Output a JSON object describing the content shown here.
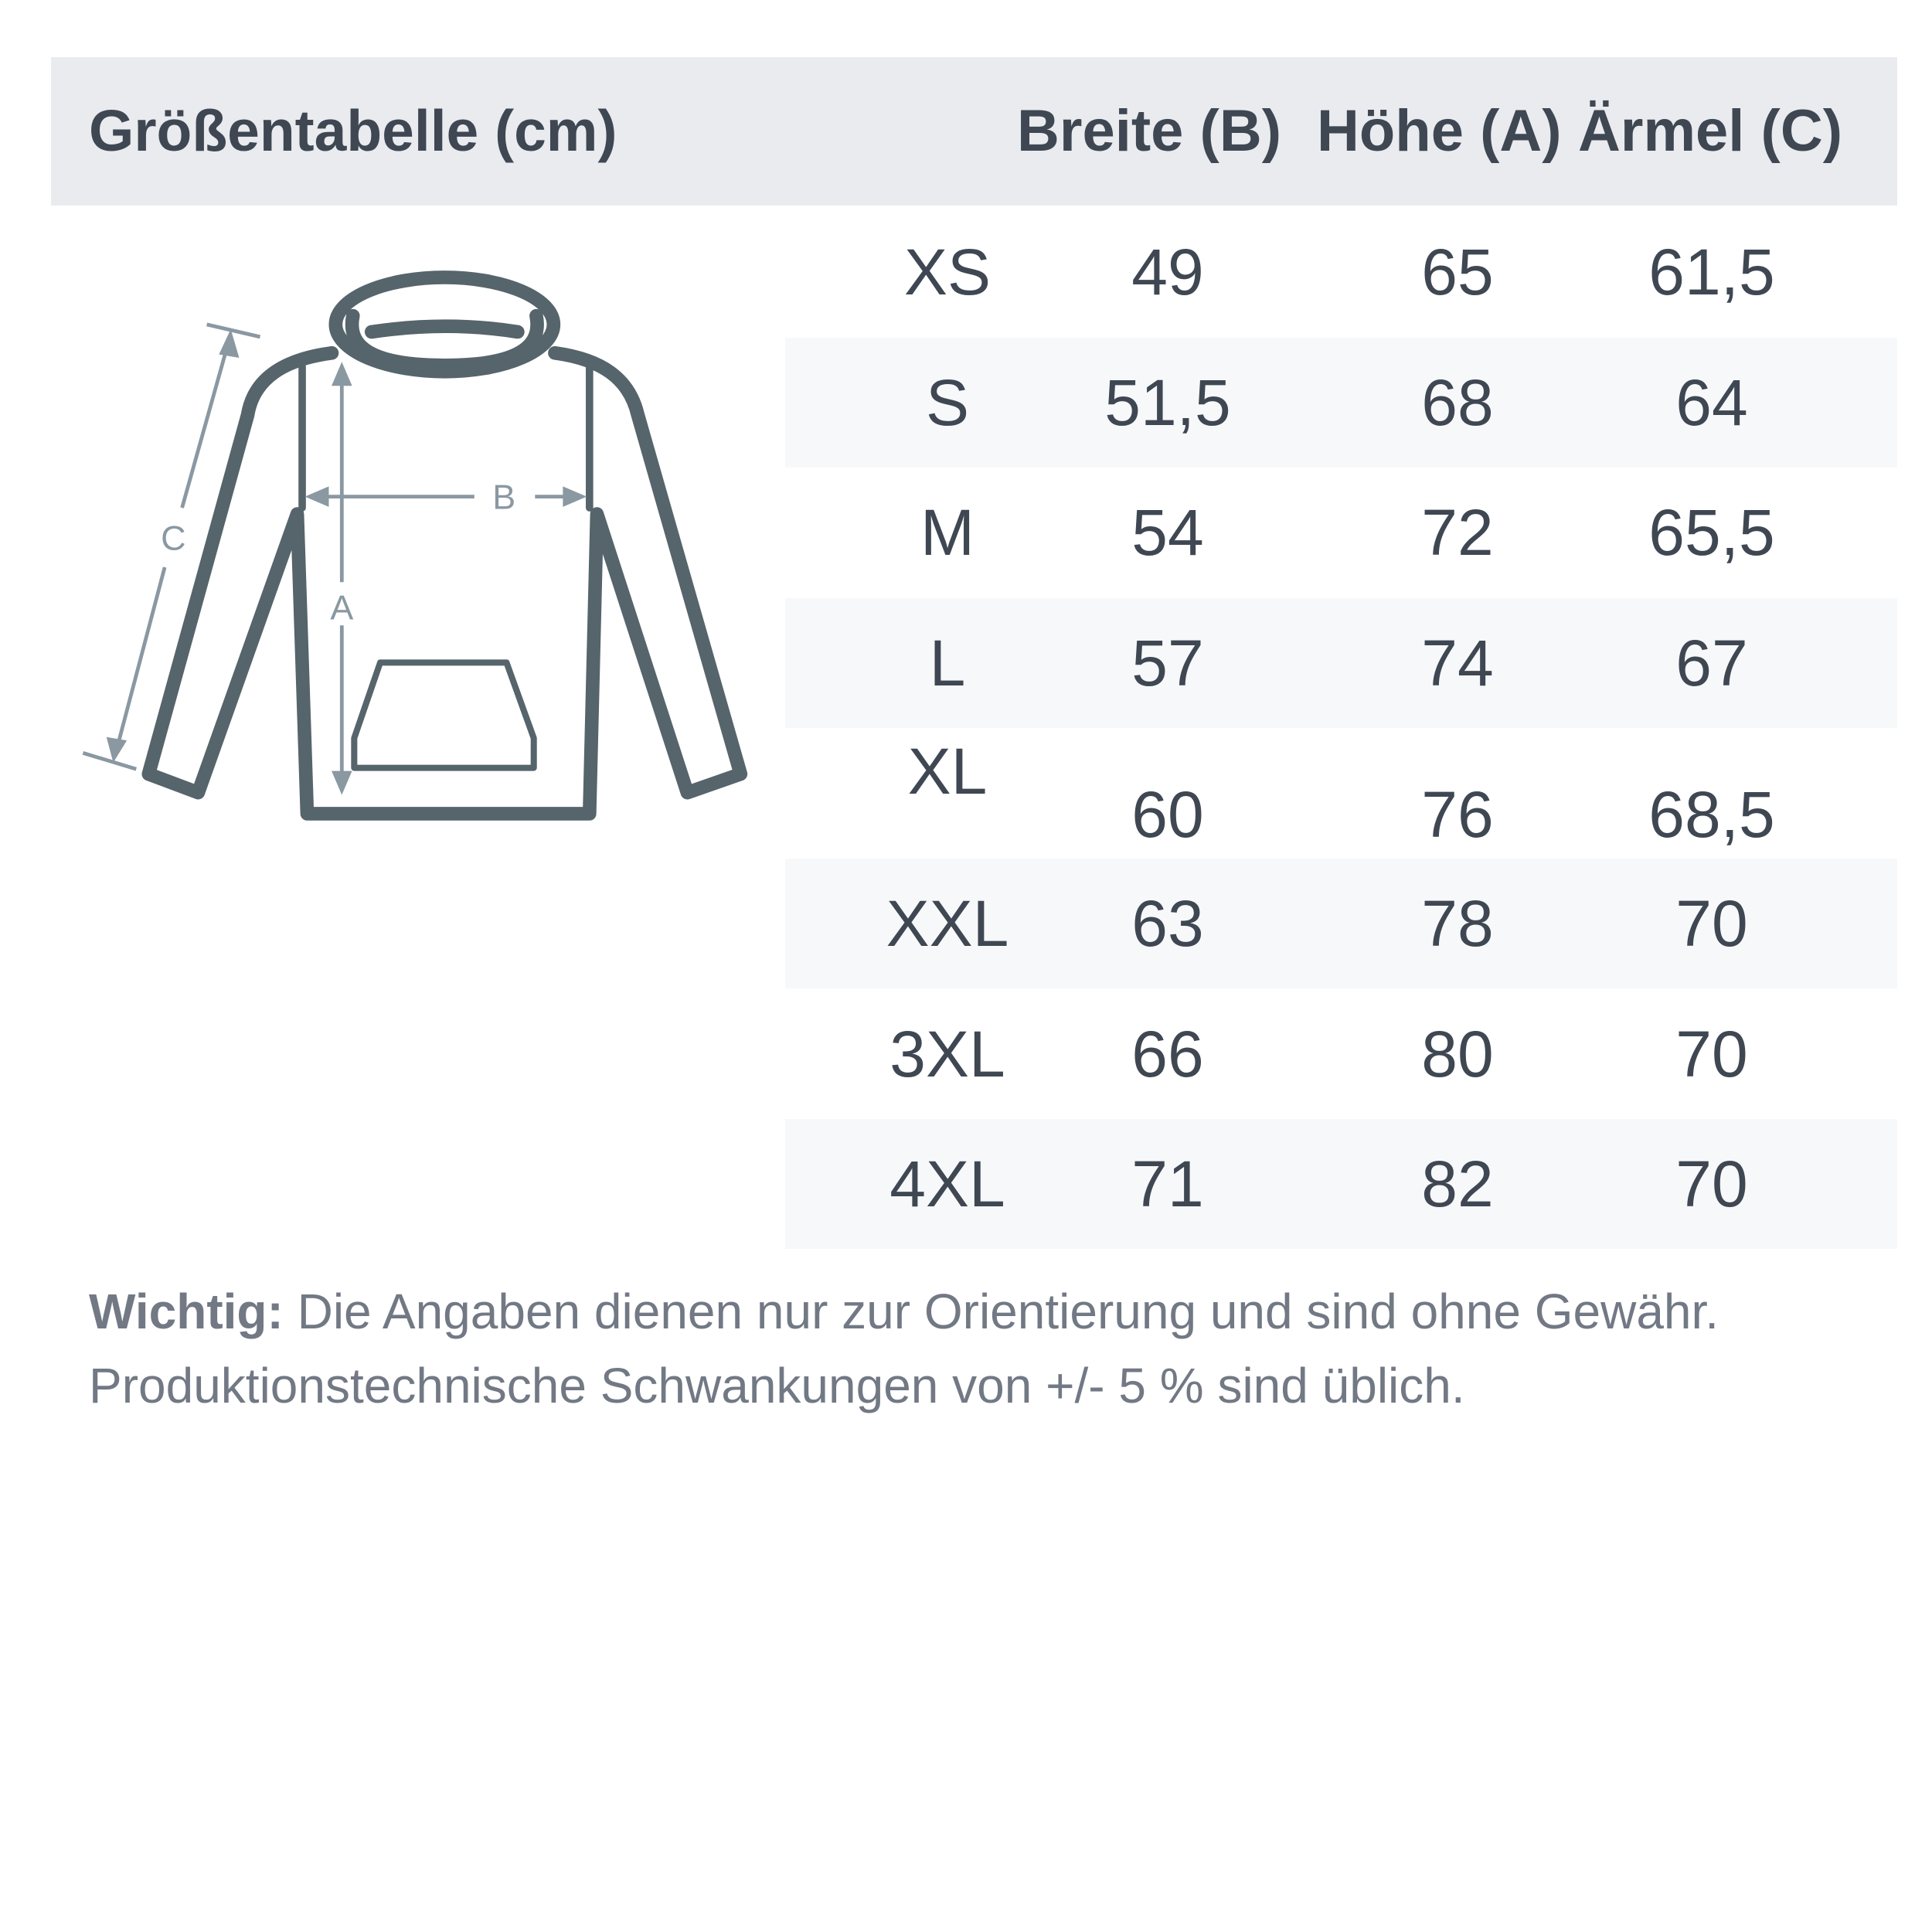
{
  "header": {
    "title": "Größentabelle (cm)",
    "columns": [
      "Breite (B)",
      "Höhe (A)",
      "Ärmel (C)"
    ]
  },
  "diagram": {
    "labels": {
      "a": "A",
      "b": "B",
      "c": "C"
    },
    "colors": {
      "outline": "#56646b",
      "arrows": "#8a98a2"
    }
  },
  "rows": [
    {
      "size": "XS",
      "breite": "49",
      "hoehe": "65",
      "aermel": "61,5"
    },
    {
      "size": "S",
      "breite": "51,5",
      "hoehe": "68",
      "aermel": "64"
    },
    {
      "size": "M",
      "breite": "54",
      "hoehe": "72",
      "aermel": "65,5"
    },
    {
      "size": "L",
      "breite": "57",
      "hoehe": "74",
      "aermel": "67"
    },
    {
      "size": "XL",
      "breite": "60",
      "hoehe": "76",
      "aermel": "68,5"
    },
    {
      "size": "XXL",
      "breite": "63",
      "hoehe": "78",
      "aermel": "70"
    },
    {
      "size": "3XL",
      "breite": "66",
      "hoehe": "80",
      "aermel": "70"
    },
    {
      "size": "4XL",
      "breite": "71",
      "hoehe": "82",
      "aermel": "70"
    }
  ],
  "note": {
    "label": "Wichtig:",
    "line1": " Die Angaben dienen nur zur Orientierung und sind ohne Gewähr.",
    "line2": "Produktionstechnische Schwankungen von +/- 5 % sind üblich."
  }
}
